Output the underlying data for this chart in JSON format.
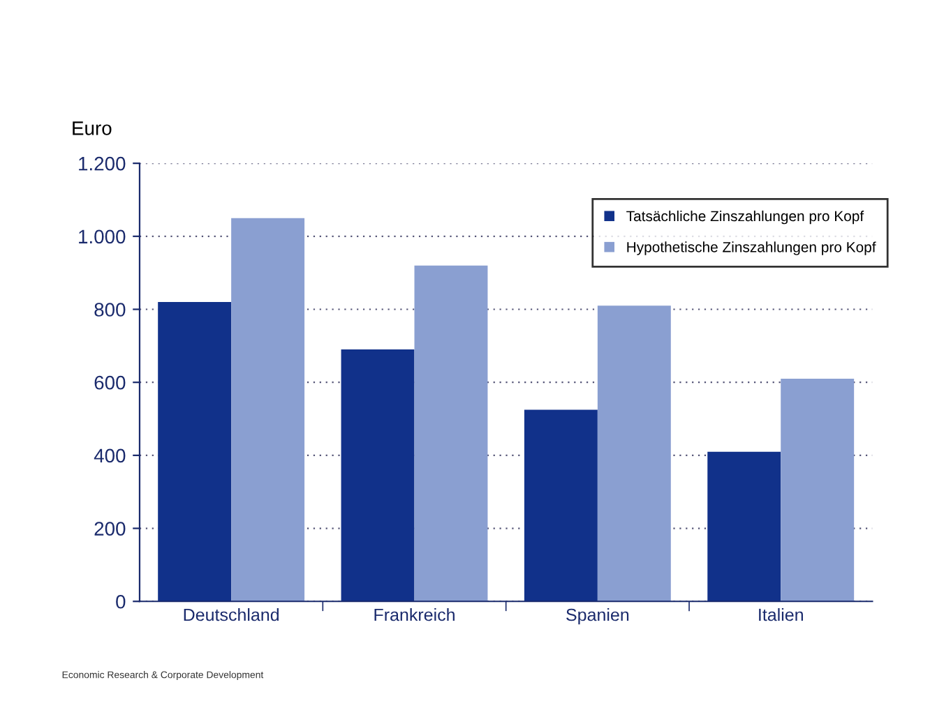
{
  "chart_data": {
    "type": "bar",
    "ylabel": "Euro",
    "categories": [
      "Deutschland",
      "Frankreich",
      "Spanien",
      "Italien"
    ],
    "series": [
      {
        "name": "Tatsächliche Zinszahlungen pro Kopf",
        "color": "#11318a",
        "values": [
          820,
          690,
          525,
          410
        ]
      },
      {
        "name": "Hypothetische Zinszahlungen pro Kopf",
        "color": "#8a9fd1",
        "values": [
          1050,
          920,
          810,
          610
        ]
      }
    ],
    "ylim": [
      0,
      1200
    ],
    "yticks": [
      0,
      {
        "value": 200,
        "label": "200"
      },
      {
        "value": 400,
        "label": "400"
      },
      {
        "value": 600,
        "label": "600"
      },
      {
        "value": 800,
        "label": "800"
      },
      {
        "value": 1000,
        "label": "1.000"
      },
      {
        "value": 1200,
        "label": "1.200"
      }
    ],
    "grid": "y",
    "legend": "top right",
    "annotations": [
      "Economic Research & Corporate Development"
    ]
  }
}
